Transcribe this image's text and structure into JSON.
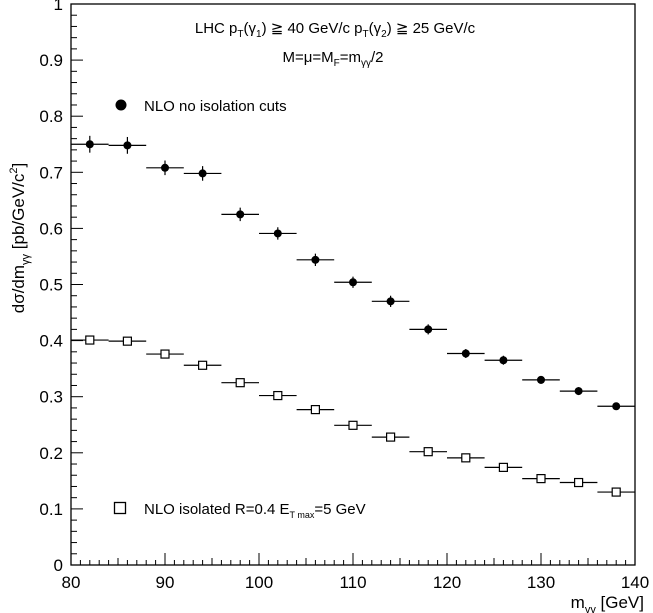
{
  "chart_data": {
    "type": "scatter",
    "header_line1": {
      "prefix": "LHC p",
      "sub1": "T",
      "mid1": "(γ",
      "sub2": "1",
      "mid2": ") ≧ 40 GeV/c p",
      "sub3": "T",
      "mid3": "(γ",
      "sub4": "2",
      "suffix": ") ≧ 25 GeV/c"
    },
    "header_line2": {
      "prefix": "M=μ=M",
      "sub1": "F",
      "mid1": "=m",
      "sub2": "γγ",
      "suffix": "/2"
    },
    "xlabel": {
      "main": "m",
      "sub": "γγ",
      "unit": " [GeV]"
    },
    "ylabel": {
      "main": "dσ/dm",
      "sub": "γγ",
      "unit": "  [pb/GeV/c",
      "sup": "2",
      "close": "]"
    },
    "xlim": [
      80,
      140
    ],
    "ylim": [
      0,
      1
    ],
    "xticks": [
      "80",
      "90",
      "100",
      "110",
      "120",
      "130",
      "140"
    ],
    "yticks": [
      "0",
      "0.1",
      "0.2",
      "0.3",
      "0.4",
      "0.5",
      "0.6",
      "0.7",
      "0.8",
      "0.9",
      "1"
    ],
    "grid": false,
    "bin_half_width": 2,
    "series": [
      {
        "name": "NLO no isolation cuts",
        "marker": "filled-circle",
        "x": [
          82,
          86,
          90,
          94,
          98,
          102,
          106,
          110,
          114,
          118,
          122,
          126,
          130,
          134,
          138
        ],
        "y": [
          0.75,
          0.748,
          0.708,
          0.698,
          0.625,
          0.591,
          0.544,
          0.504,
          0.47,
          0.42,
          0.377,
          0.365,
          0.33,
          0.31,
          0.283
        ],
        "yerr": [
          0.015,
          0.015,
          0.013,
          0.013,
          0.012,
          0.011,
          0.011,
          0.01,
          0.01,
          0.009,
          0.008,
          0.008,
          0.007,
          0.007,
          0.006
        ]
      },
      {
        "name": "NLO isolated R=0.4 E",
        "name_sub": "T max",
        "name_suffix": "=5 GeV",
        "marker": "open-square",
        "x": [
          82,
          86,
          90,
          94,
          98,
          102,
          106,
          110,
          114,
          118,
          122,
          126,
          130,
          134,
          138
        ],
        "y": [
          0.401,
          0.399,
          0.376,
          0.356,
          0.325,
          0.302,
          0.277,
          0.249,
          0.228,
          0.202,
          0.191,
          0.174,
          0.154,
          0.147,
          0.13
        ],
        "yerr": [
          0.0,
          0.0,
          0.0,
          0.0,
          0.0,
          0.0,
          0.0,
          0.0,
          0.0,
          0.0,
          0.0,
          0.0,
          0.0,
          0.0,
          0.0
        ]
      }
    ]
  }
}
